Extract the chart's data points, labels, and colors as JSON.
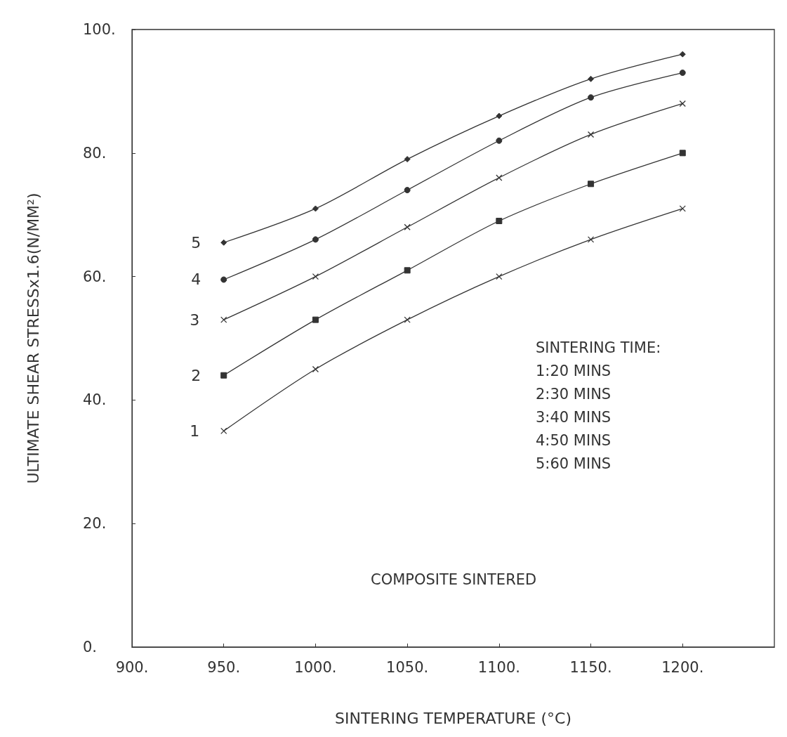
{
  "chart_data": {
    "type": "line",
    "xlabel": "SINTERING TEMPERATURE (°C)",
    "ylabel": "ULTIMATE SHEAR STRESSx1.6(N/MM²)",
    "x": [
      950,
      1000,
      1050,
      1100,
      1150,
      1200
    ],
    "series": [
      {
        "name": "1",
        "color": "#333333",
        "marker": "cross",
        "values": [
          35,
          45,
          53,
          60,
          66,
          71
        ]
      },
      {
        "name": "2",
        "color": "#333333",
        "marker": "square",
        "values": [
          44,
          53,
          61,
          69,
          75,
          80
        ]
      },
      {
        "name": "3",
        "color": "#333333",
        "marker": "cross",
        "values": [
          53,
          60,
          68,
          76,
          83,
          88
        ]
      },
      {
        "name": "4",
        "color": "#333333",
        "marker": "circle",
        "values": [
          59.5,
          66,
          74,
          82,
          89,
          93
        ]
      },
      {
        "name": "5",
        "color": "#333333",
        "marker": "diamond",
        "values": [
          65.5,
          71,
          79,
          86,
          92,
          96
        ]
      }
    ],
    "xlim": [
      900,
      1250
    ],
    "xticks": [
      {
        "value": 900,
        "label": "900."
      },
      {
        "value": 950,
        "label": "950."
      },
      {
        "value": 1000,
        "label": "1000."
      },
      {
        "value": 1050,
        "label": "1050."
      },
      {
        "value": 1100,
        "label": "1100."
      },
      {
        "value": 1150,
        "label": "1150."
      },
      {
        "value": 1200,
        "label": "1200."
      }
    ],
    "ylim": [
      0,
      100
    ],
    "yticks": [
      {
        "value": 0,
        "label": "0."
      },
      {
        "value": 20,
        "label": "20."
      },
      {
        "value": 40,
        "label": "40."
      },
      {
        "value": 60,
        "label": "60."
      },
      {
        "value": 80,
        "label": "80."
      },
      {
        "value": 100,
        "label": "100."
      }
    ],
    "grid": false,
    "legend": false,
    "annotations": [
      "SINTERING TIME:\n1:20 MINS\n2:30 MINS\n3:40 MINS\n4:50 MINS\n5:60 MINS",
      "COMPOSITE SINTERED"
    ]
  }
}
